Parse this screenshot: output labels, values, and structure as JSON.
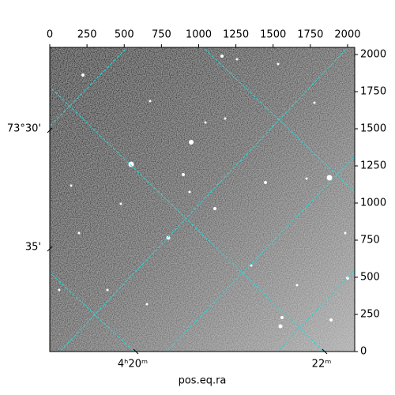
{
  "chart_data": {
    "type": "image",
    "xlabel": "pos.eq.ra",
    "xlim": [
      0,
      2048
    ],
    "xticks": [
      0,
      250,
      500,
      750,
      1000,
      1250,
      1500,
      1750,
      2000
    ],
    "ylim": [
      0,
      2048
    ],
    "yticks": [
      0,
      250,
      500,
      750,
      1000,
      1250,
      1500,
      1750,
      2000
    ],
    "ra_tick_labels": [
      "4ʰ20ᵐ",
      "22ᵐ"
    ],
    "dec_tick_labels": [
      "73°30'",
      "35'"
    ],
    "grid": true
  }
}
